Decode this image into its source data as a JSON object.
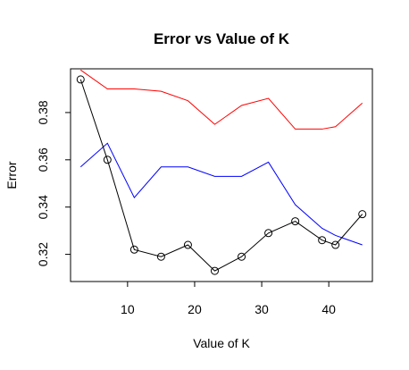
{
  "chart_data": {
    "type": "line",
    "title": "Error vs Value of K",
    "xlabel": "Value of K",
    "ylabel": "Error",
    "xlim": [
      1.5,
      46.5
    ],
    "ylim": [
      0.3085,
      0.3985
    ],
    "xticks": [
      10,
      20,
      30,
      40
    ],
    "yticks": [
      0.32,
      0.34,
      0.36,
      0.38
    ],
    "x": [
      3,
      7,
      11,
      15,
      19,
      23,
      27,
      31,
      35,
      39,
      41,
      45
    ],
    "series": [
      {
        "color": "#ff0000",
        "markers": false,
        "values": [
          0.398,
          0.39,
          0.39,
          0.389,
          0.385,
          0.375,
          0.383,
          0.386,
          0.373,
          0.373,
          0.374,
          0.384
        ]
      },
      {
        "color": "#0000ff",
        "markers": false,
        "values": [
          0.357,
          0.367,
          0.344,
          0.357,
          0.357,
          0.353,
          0.353,
          0.359,
          0.341,
          0.331,
          0.328,
          0.324
        ]
      },
      {
        "color": "#000000",
        "markers": true,
        "marker": "open-circle",
        "values": [
          0.394,
          0.36,
          0.322,
          0.319,
          0.324,
          0.313,
          0.319,
          0.329,
          0.334,
          0.326,
          0.324,
          0.337
        ]
      }
    ],
    "grid": false,
    "legend": "none"
  }
}
